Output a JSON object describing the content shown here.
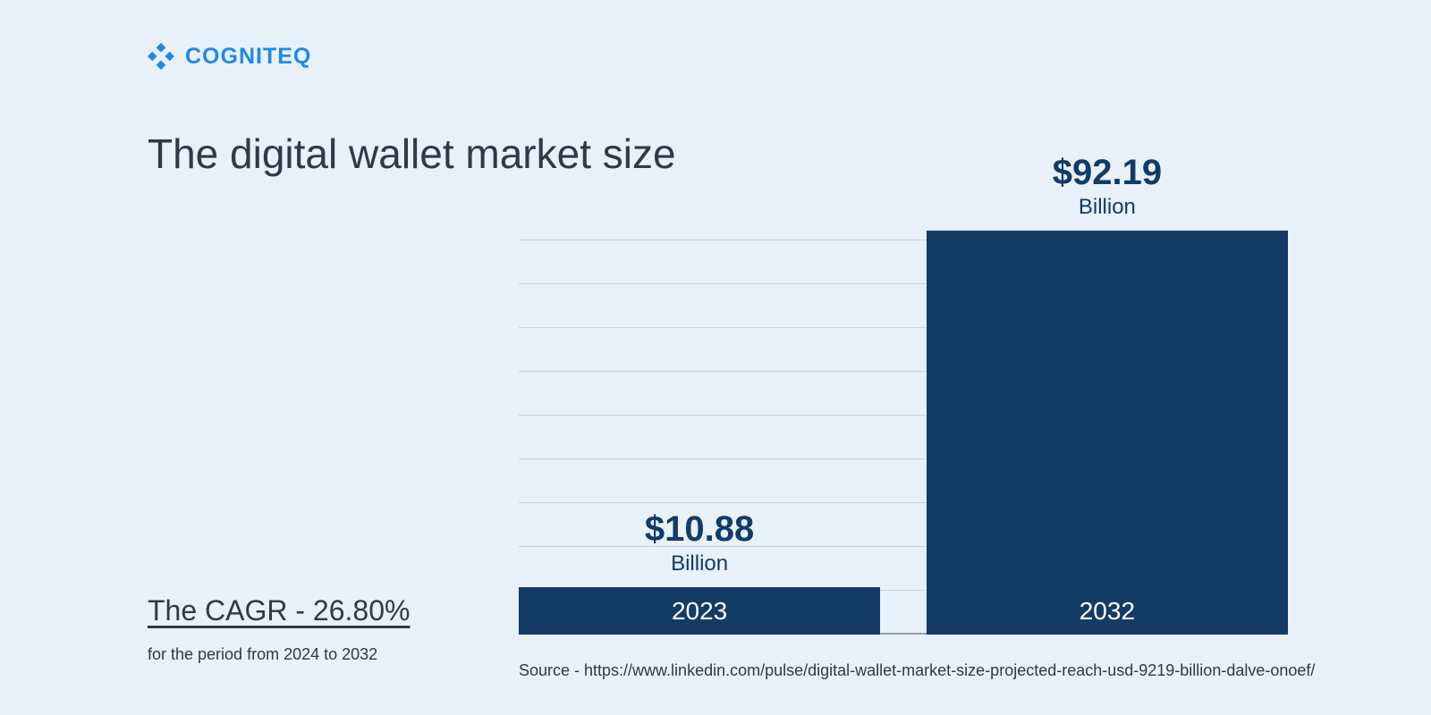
{
  "brand": {
    "name": "COGNITEQ",
    "color": "#2089e7"
  },
  "title": "The digital wallet market size",
  "cagr": {
    "label": "The CAGR - 26.80%",
    "sub": "for the period from 2024 to 2032"
  },
  "chart": {
    "type": "bar",
    "background_color": "#e8f0f9",
    "grid_color": "#c8d4e0",
    "baseline_color": "#8fa2b5",
    "bar_color": "#143b66",
    "text_color": "#123b66",
    "year_label_color": "#ffffff",
    "ylim": [
      0,
      100
    ],
    "grid_count": 9,
    "bars": [
      {
        "year": "2023",
        "value": 10.88,
        "value_label": "$10.88",
        "unit": "Billion",
        "left_pct": 0,
        "width_pct": 47
      },
      {
        "year": "2032",
        "value": 92.19,
        "value_label": "$92.19",
        "unit": "Billion",
        "left_pct": 53,
        "width_pct": 47
      }
    ]
  },
  "source": "Source - https://www.linkedin.com/pulse/digital-wallet-market-size-projected-reach-usd-9219-billion-dalve-onoef/"
}
